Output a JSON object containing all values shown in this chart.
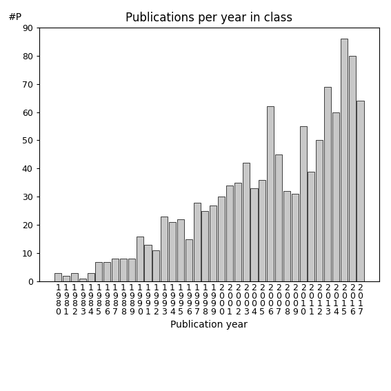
{
  "title": "Publications per year in class",
  "xlabel": "Publication year",
  "ylabel": "#P",
  "years": [
    1980,
    1981,
    1982,
    1983,
    1984,
    1985,
    1986,
    1987,
    1988,
    1989,
    1990,
    1991,
    1992,
    1993,
    1994,
    1995,
    1996,
    1997,
    1998,
    1999,
    2000,
    2001,
    2002,
    2003,
    2004,
    2005,
    2006,
    2007,
    2008,
    2009,
    2010,
    2011,
    2012,
    2013,
    2014,
    2015,
    2016,
    2017
  ],
  "values": [
    3,
    2,
    3,
    1,
    3,
    7,
    7,
    8,
    8,
    8,
    16,
    13,
    11,
    23,
    21,
    22,
    15,
    28,
    25,
    27,
    30,
    34,
    35,
    42,
    33,
    36,
    62,
    45,
    32,
    31,
    55,
    39,
    50,
    69,
    60,
    86,
    80,
    64
  ],
  "bar_color": "#c8c8c8",
  "bar_edge_color": "#000000",
  "bar_edge_width": 0.5,
  "ylim": [
    0,
    90
  ],
  "yticks": [
    0,
    10,
    20,
    30,
    40,
    50,
    60,
    70,
    80,
    90
  ],
  "background_color": "#ffffff",
  "title_fontsize": 12,
  "label_fontsize": 10,
  "tick_fontsize": 9
}
